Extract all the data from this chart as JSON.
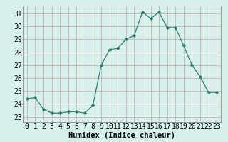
{
  "x": [
    0,
    1,
    2,
    3,
    4,
    5,
    6,
    7,
    8,
    9,
    10,
    11,
    12,
    13,
    14,
    15,
    16,
    17,
    18,
    19,
    20,
    21,
    22,
    23
  ],
  "y": [
    24.4,
    24.5,
    23.6,
    23.3,
    23.3,
    23.4,
    23.4,
    23.3,
    23.9,
    27.0,
    28.2,
    28.3,
    29.0,
    29.3,
    31.1,
    30.6,
    31.1,
    29.9,
    29.9,
    28.5,
    27.0,
    26.1,
    24.9,
    24.9
  ],
  "line_color": "#2d7d6e",
  "marker": "D",
  "marker_size": 2.2,
  "bg_color": "#d6f0eb",
  "grid_color": "#c8b0b0",
  "xlabel": "Humidex (Indice chaleur)",
  "ylabel_ticks": [
    23,
    24,
    25,
    26,
    27,
    28,
    29,
    30,
    31
  ],
  "xlim": [
    -0.5,
    23.5
  ],
  "ylim": [
    22.6,
    31.6
  ],
  "xlabel_fontsize": 7.5,
  "tick_fontsize": 7
}
